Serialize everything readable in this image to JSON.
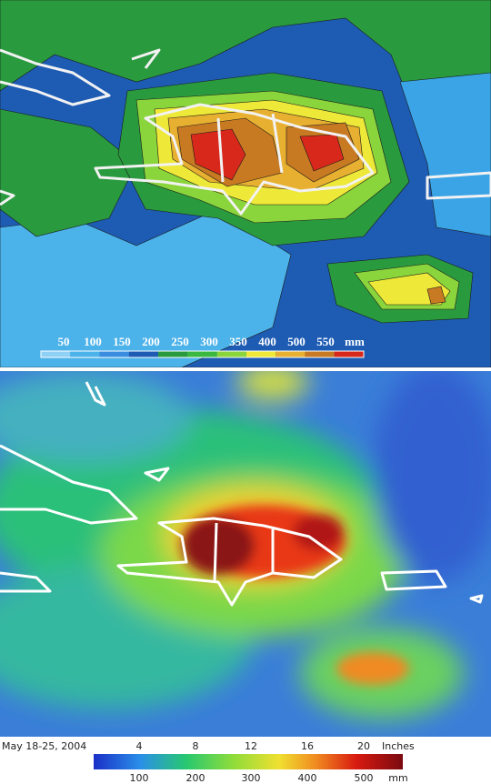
{
  "top_panel": {
    "legend": {
      "labels": [
        50,
        100,
        150,
        200,
        250,
        300,
        350,
        400,
        500,
        550
      ],
      "unit": "mm"
    }
  },
  "bottom_panel": {
    "date": "May 18-25, 2004",
    "legend": {
      "inch_labels": [
        4,
        8,
        12,
        16,
        20
      ],
      "inch_unit": "Inches",
      "mm_labels": [
        100,
        200,
        300,
        400,
        500
      ],
      "mm_unit": "mm"
    }
  }
}
